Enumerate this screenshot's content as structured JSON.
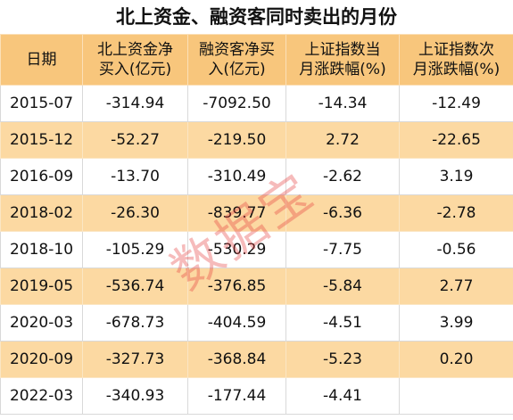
{
  "title": "北上资金、融资客同时卖出的月份",
  "table": {
    "header": [
      [
        "日期"
      ],
      [
        "北上资金净",
        "买入(亿元)"
      ],
      [
        "融资客净买",
        "入(亿元)"
      ],
      [
        "上证指数当",
        "月涨跌幅(%)"
      ],
      [
        "上证指数次",
        "月涨跌幅(%)"
      ]
    ],
    "rows": [
      [
        "2015-07",
        "-314.94",
        "-7092.50",
        "-14.34",
        "-12.49"
      ],
      [
        "2015-12",
        "-52.27",
        "-219.50",
        "2.72",
        "-22.65"
      ],
      [
        "2016-09",
        "-13.70",
        "-310.49",
        "-2.62",
        "3.19"
      ],
      [
        "2018-02",
        "-26.30",
        "-839.77",
        "-6.36",
        "-2.78"
      ],
      [
        "2018-10",
        "-105.29",
        "-530.29",
        "-7.75",
        "-0.56"
      ],
      [
        "2019-05",
        "-536.74",
        "-376.85",
        "-5.84",
        "2.77"
      ],
      [
        "2020-03",
        "-678.73",
        "-404.59",
        "-4.51",
        "3.99"
      ],
      [
        "2020-09",
        "-327.73",
        "-368.84",
        "-5.23",
        "0.20"
      ],
      [
        "2022-03",
        "-340.93",
        "-177.44",
        "-4.41",
        null
      ]
    ]
  },
  "watermark": "数据宝"
}
